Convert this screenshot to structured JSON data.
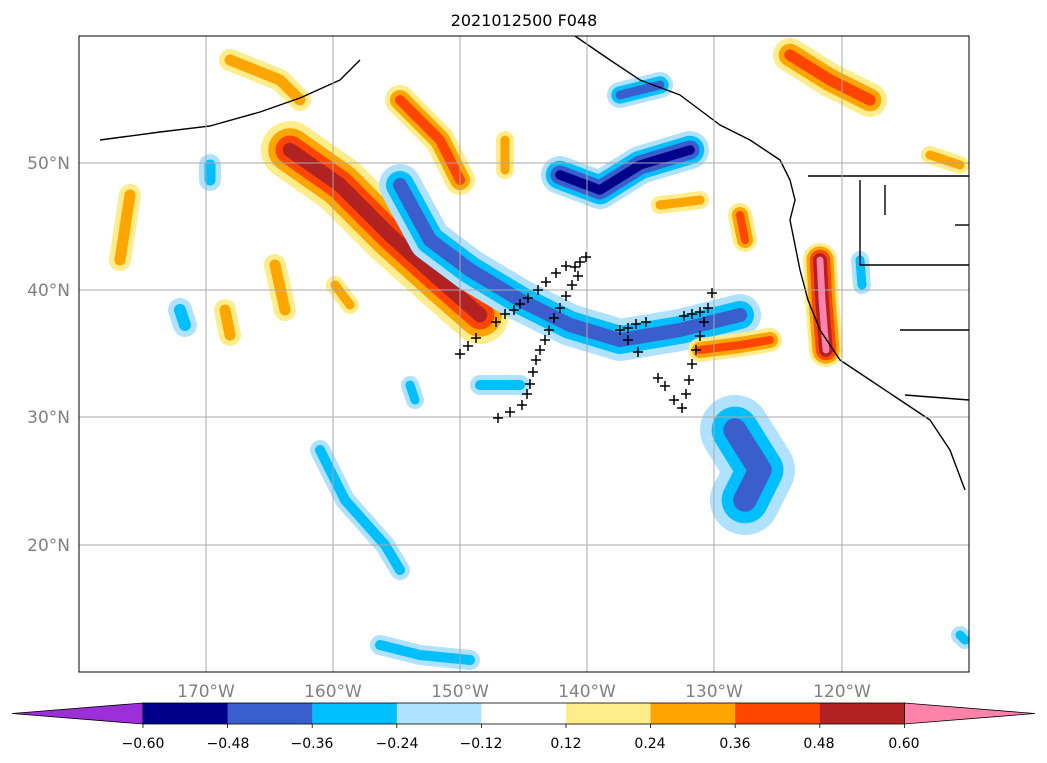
{
  "title": "2021012500 F048",
  "map": {
    "x_ticks": [
      "170°W",
      "160°W",
      "150°W",
      "140°W",
      "130°W",
      "120°W"
    ],
    "y_ticks": [
      "50°N",
      "40°N",
      "30°N",
      "20°N"
    ],
    "grid": true,
    "projection": "lat-lon",
    "extent_lon": [
      -180,
      -110
    ],
    "extent_lat": [
      10,
      60
    ]
  },
  "colorbar": {
    "tick_labels": [
      "−0.60",
      "−0.48",
      "−0.36",
      "−0.24",
      "−0.12",
      "0.12",
      "0.24",
      "0.36",
      "0.48",
      "0.60"
    ],
    "levels": [
      -0.6,
      -0.48,
      -0.36,
      -0.24,
      -0.12,
      0.12,
      0.24,
      0.36,
      0.48,
      0.6
    ],
    "colors": [
      "#9b30d9",
      "#00008b",
      "#3a5fcd",
      "#00bfff",
      "#b0e2ff",
      "#ffffff",
      "#ffec8b",
      "#ffa500",
      "#ff4500",
      "#b22222",
      "#ff82ab"
    ],
    "extend": "both"
  },
  "markers": {
    "symbol": "+",
    "color": "#000000"
  }
}
